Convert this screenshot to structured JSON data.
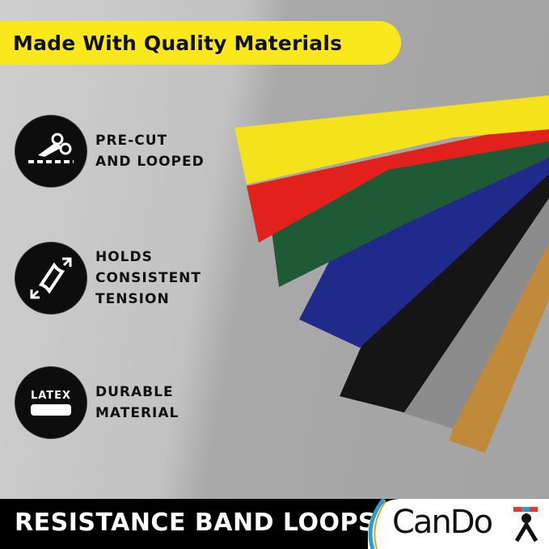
{
  "banner": {
    "title": "Made With Quality Materials",
    "color": "#f8e81c"
  },
  "features": [
    {
      "icon": "scissors-cut-icon",
      "text": "PRE-CUT\nAND LOOPED"
    },
    {
      "icon": "stretch-tension-icon",
      "text": "HOLDS\nCONSISTENT\nTENSION"
    },
    {
      "icon": "latex-icon",
      "icon_label": "LATEX",
      "text": "DURABLE\nMATERIAL"
    }
  ],
  "bands": [
    {
      "color": "#f4e21b"
    },
    {
      "color": "#e2211c"
    },
    {
      "color": "#1e5a35"
    },
    {
      "color": "#1f2a8a"
    },
    {
      "color": "#151515"
    },
    {
      "color": "#8a8a8a"
    },
    {
      "color": "#c08a3a"
    }
  ],
  "footer": {
    "title": "RESISTANCE BAND LOOPS",
    "brand": "CanDo"
  }
}
